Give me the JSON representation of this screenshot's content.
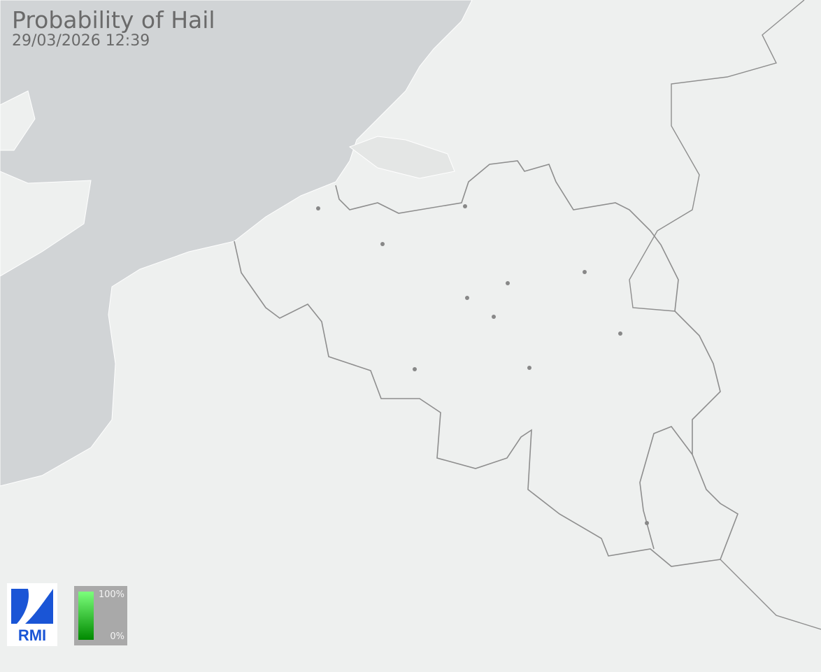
{
  "header": {
    "title": "Probability of Hail",
    "timestamp": "29/03/2026 12:39"
  },
  "logo": {
    "text": "RMI"
  },
  "legend": {
    "max_label": "100%",
    "min_label": "0%",
    "color_high": "#7cff7c",
    "color_low": "#008a00",
    "background": "#a9a9a9"
  },
  "map": {
    "land_color": "#eef0ef",
    "sea_color": "#d1d4d6",
    "border_color": "#8a8a8a",
    "city_marker_color": "#888888"
  }
}
